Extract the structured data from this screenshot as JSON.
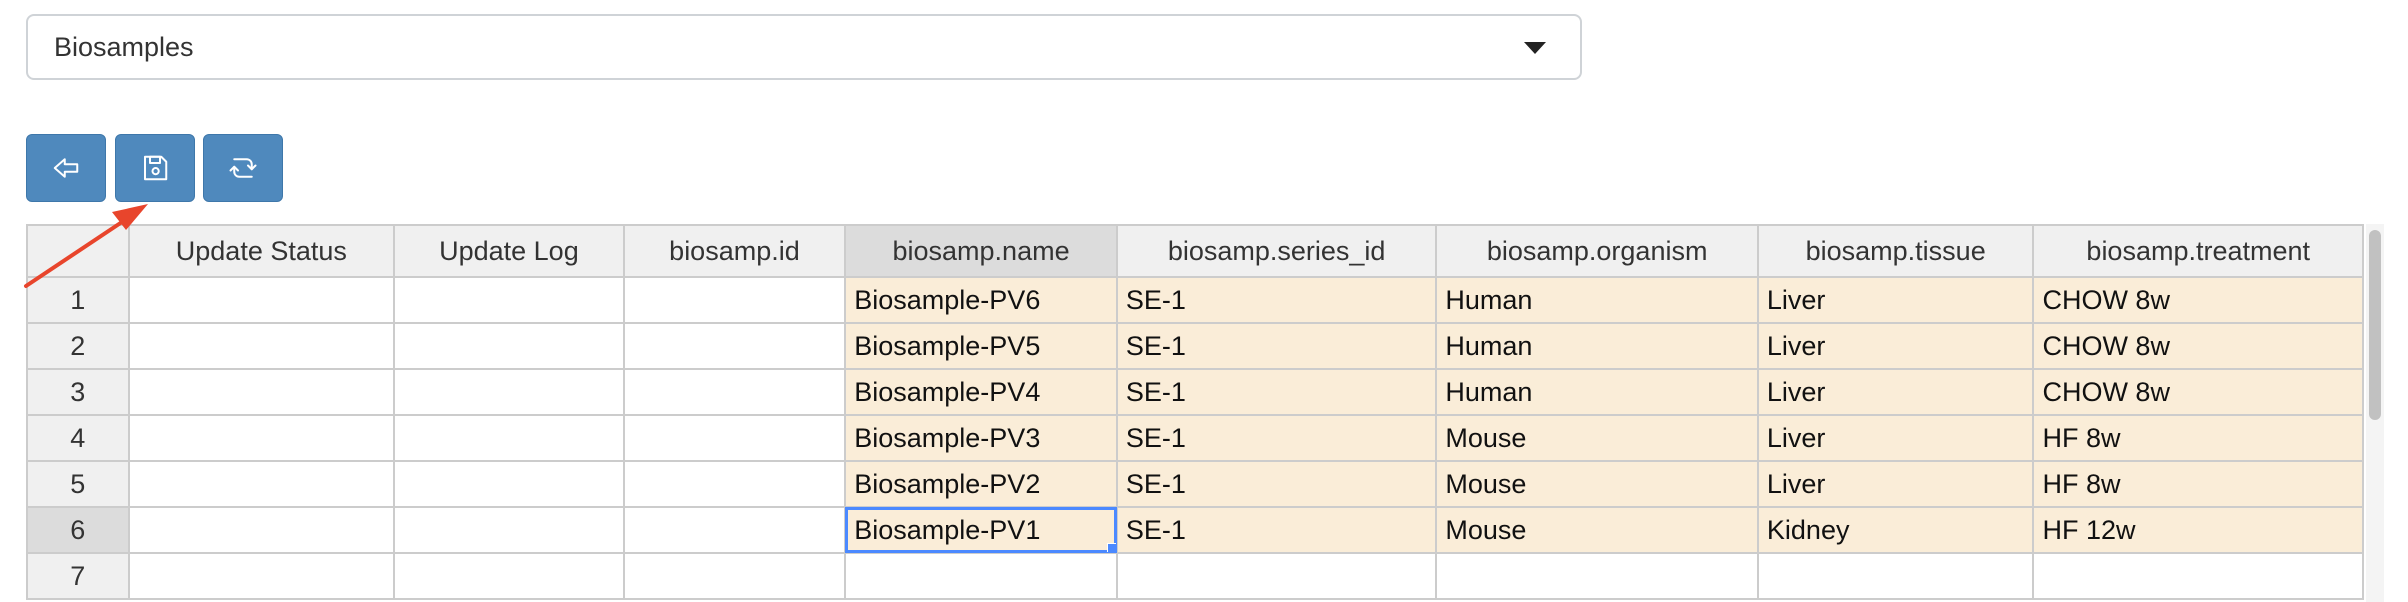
{
  "selector": {
    "value": "Biosamples",
    "icon": "caret-down-icon"
  },
  "toolbar": {
    "buttons": [
      {
        "name": "back-button",
        "icon": "arrow-left-icon"
      },
      {
        "name": "save-button",
        "icon": "floppy-disk-icon"
      },
      {
        "name": "refresh-button",
        "icon": "refresh-icon"
      }
    ],
    "color": "#4f89bd"
  },
  "annotation": {
    "color": "#e8452c",
    "target": "save-button"
  },
  "table": {
    "headers": [
      "Update Status",
      "Update Log",
      "biosamp.id",
      "biosamp.name",
      "biosamp.series_id",
      "biosamp.organism",
      "biosamp.tissue",
      "biosamp.treatment"
    ],
    "rows": [
      {
        "n": "1",
        "name": "Biosample-PV6",
        "series": "SE-1",
        "organism": "Human",
        "tissue": "Liver",
        "treatment": "CHOW 8w"
      },
      {
        "n": "2",
        "name": "Biosample-PV5",
        "series": "SE-1",
        "organism": "Human",
        "tissue": "Liver",
        "treatment": "CHOW 8w"
      },
      {
        "n": "3",
        "name": "Biosample-PV4",
        "series": "SE-1",
        "organism": "Human",
        "tissue": "Liver",
        "treatment": "CHOW 8w"
      },
      {
        "n": "4",
        "name": "Biosample-PV3",
        "series": "SE-1",
        "organism": "Mouse",
        "tissue": "Liver",
        "treatment": "HF 8w"
      },
      {
        "n": "5",
        "name": "Biosample-PV2",
        "series": "SE-1",
        "organism": "Mouse",
        "tissue": "Liver",
        "treatment": "HF 8w"
      },
      {
        "n": "6",
        "name": "Biosample-PV1",
        "series": "SE-1",
        "organism": "Mouse",
        "tissue": "Kidney",
        "treatment": "HF 12w"
      }
    ],
    "empty_row": {
      "n": "7"
    },
    "filled_color": "#faedd8",
    "selection_color": "#4b89ff"
  }
}
